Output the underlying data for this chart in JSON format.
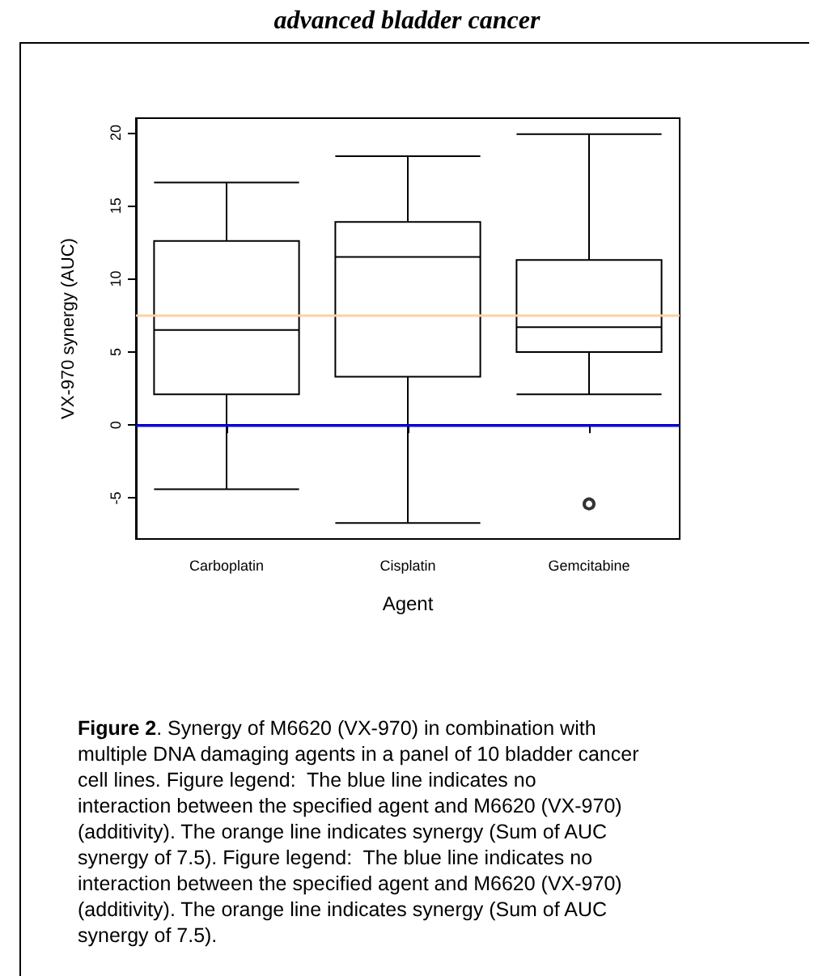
{
  "chart_data": {
    "type": "box",
    "title": "advanced bladder cancer",
    "xlabel": "Agent",
    "ylabel": "VX-970 synergy (AUC)",
    "categories": [
      "Carboplatin",
      "Cisplatin",
      "Gemcitabine"
    ],
    "boxes": [
      {
        "low": -4.4,
        "q1": 2.1,
        "median": 6.5,
        "q3": 12.6,
        "high": 16.6
      },
      {
        "low": -6.7,
        "q1": 3.3,
        "median": 11.5,
        "q3": 13.9,
        "high": 18.4
      },
      {
        "low": 2.1,
        "q1": 5.0,
        "median": 6.7,
        "q3": 11.3,
        "high": 19.9,
        "outliers": [
          -5.4
        ]
      }
    ],
    "ylim": [
      -7.8,
      21
    ],
    "yticks": [
      -5,
      0,
      5,
      10,
      15,
      20
    ],
    "grid": false,
    "marker": "circle",
    "ref_lines": [
      {
        "axis": "y",
        "value": 0,
        "color": "#0000ff"
      },
      {
        "axis": "y",
        "value": 7.5,
        "color": "#fdd0a2"
      }
    ],
    "annotations": [
      "Figure 2. Synergy of M6620 (VX-970) in combination with multiple DNA damaging agents in a panel of 10 bladder cancer cell lines. Figure legend:  The blue line indicates no interaction between the specified agent and M6620 (VX-970) (additivity). The orange line indicates synergy (Sum of AUC synergy of 7.5). Figure legend:  The blue line indicates no interaction between the specified agent and M6620 (VX-970) (additivity). The orange line indicates synergy (Sum of AUC synergy of 7.5)."
    ]
  }
}
